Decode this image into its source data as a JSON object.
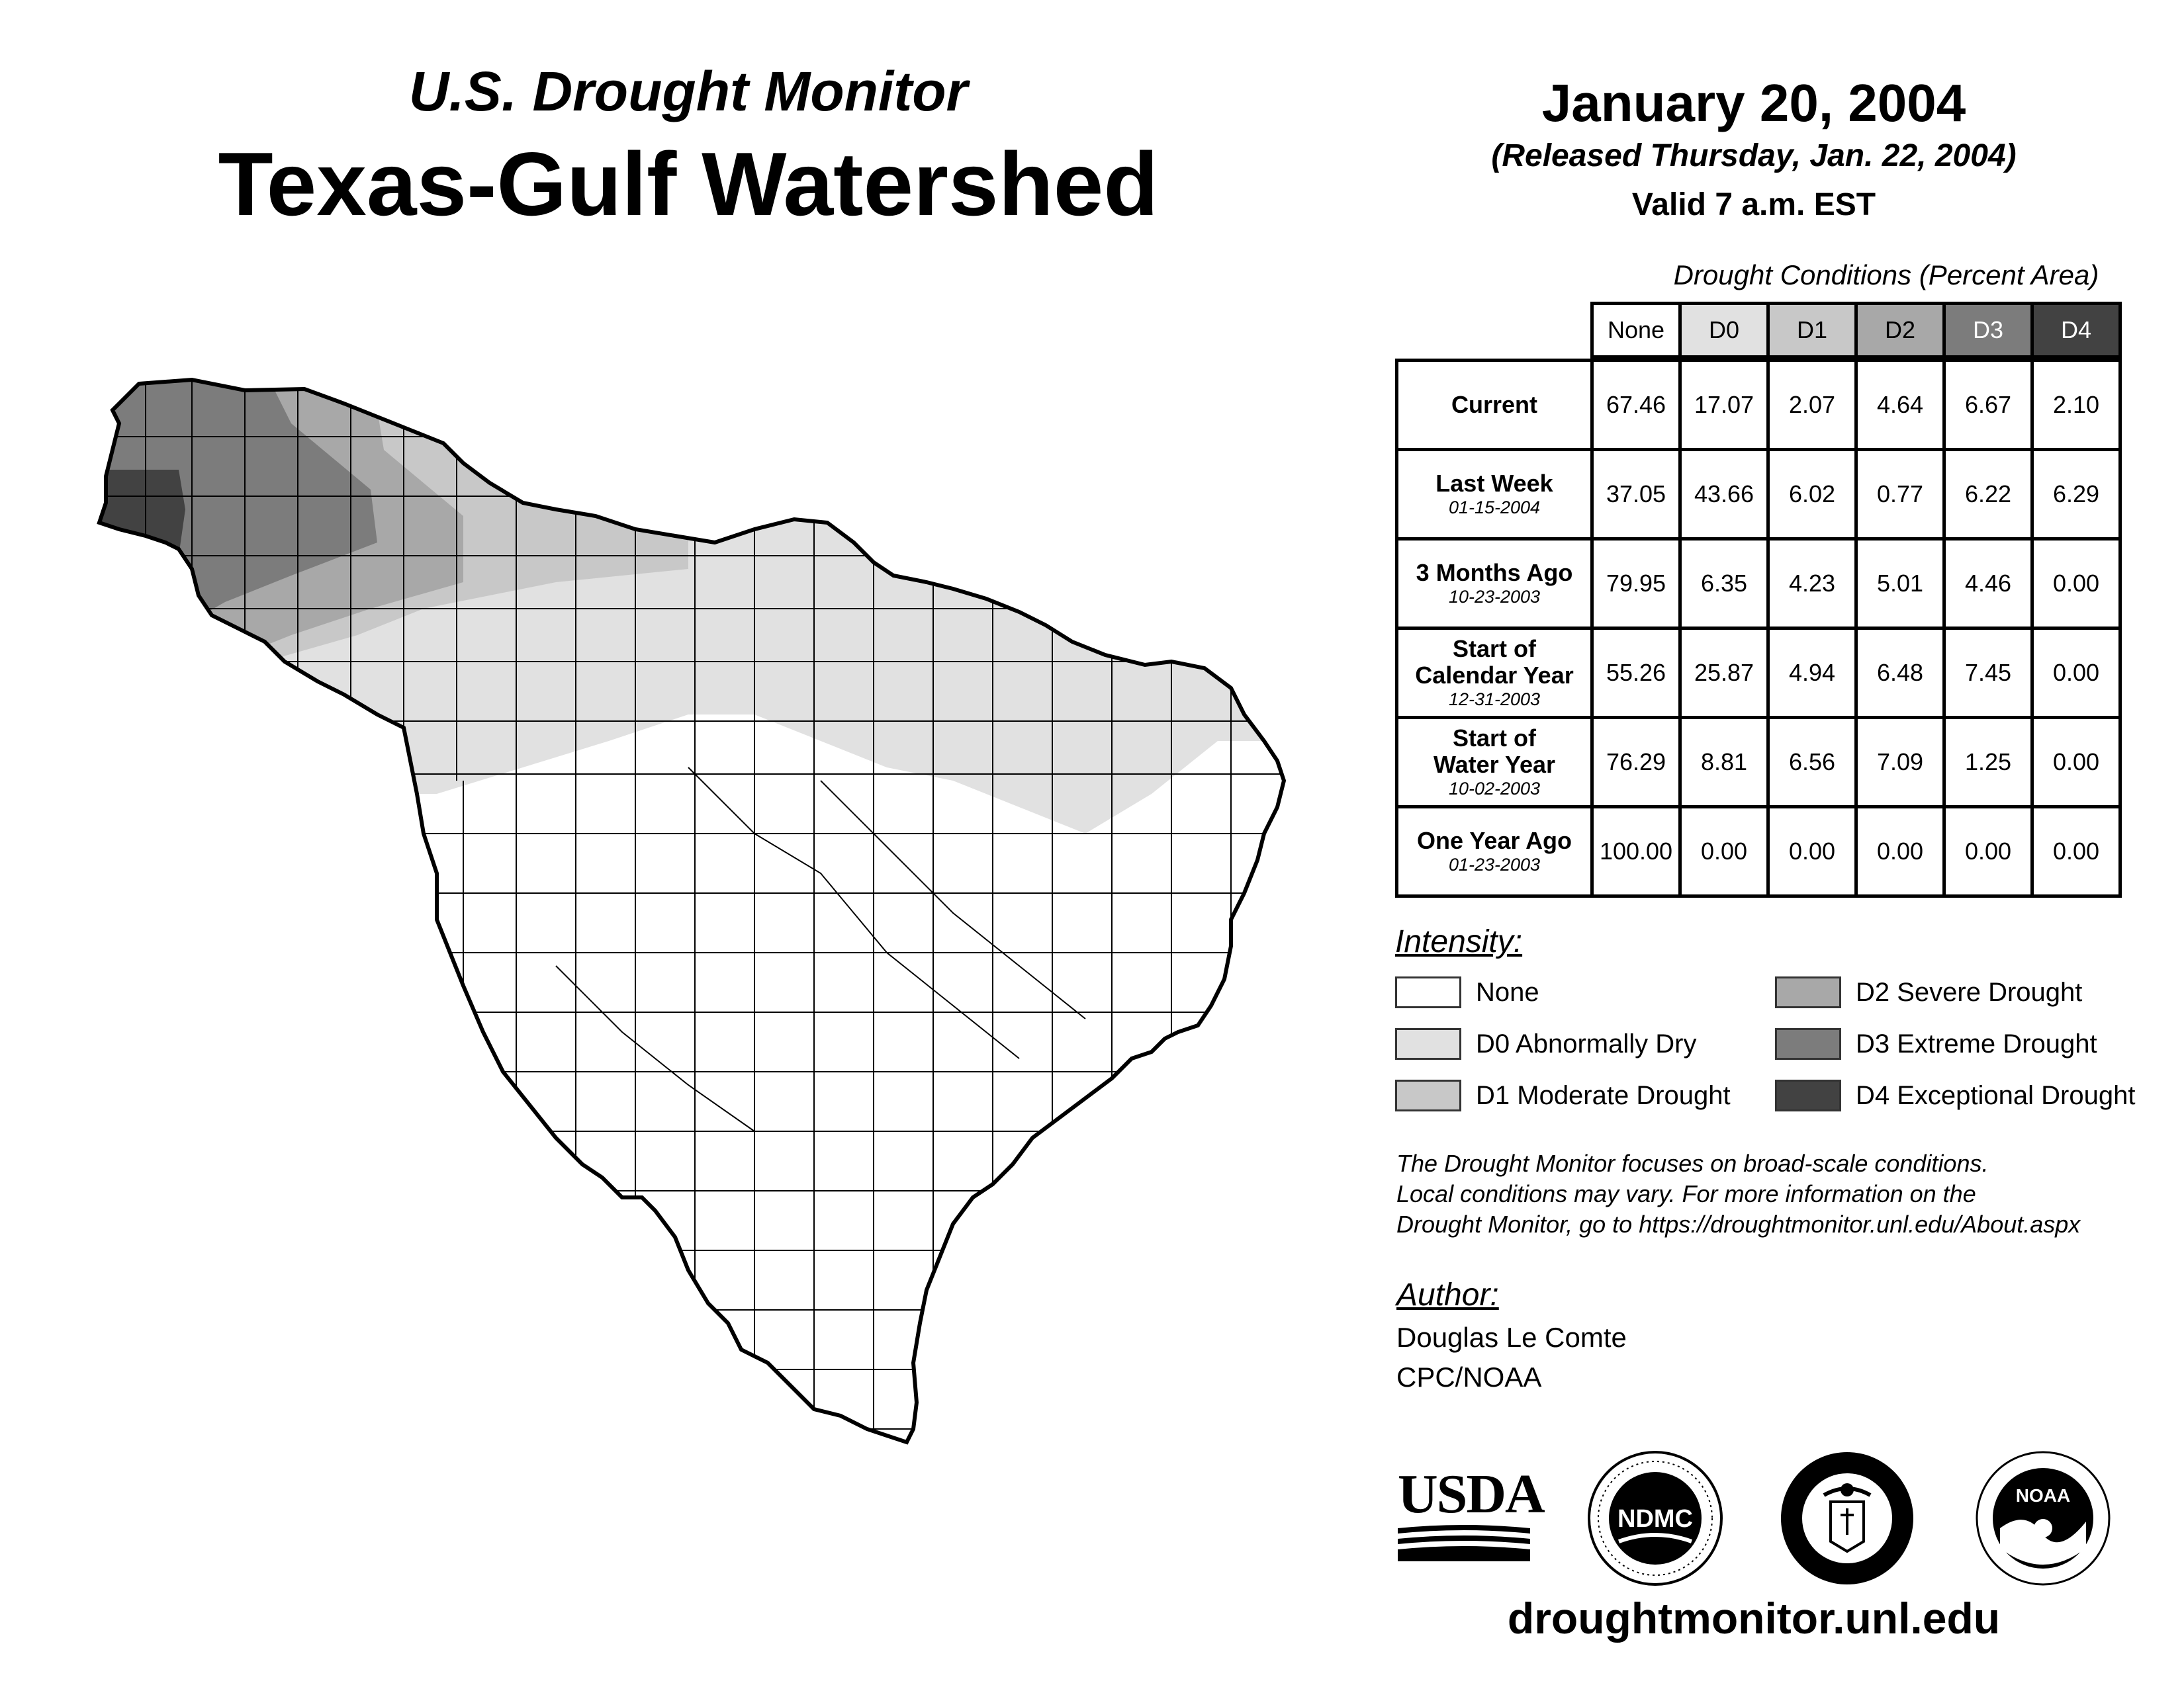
{
  "header": {
    "subtitle": "U.S. Drought Monitor",
    "title": "Texas-Gulf Watershed",
    "date": "January 20, 2004",
    "released": "(Released Thursday, Jan. 22, 2004)",
    "valid": "Valid 7 a.m. EST"
  },
  "table": {
    "caption": "Drought Conditions (Percent Area)",
    "columns": [
      "None",
      "D0",
      "D1",
      "D2",
      "D3",
      "D4"
    ],
    "rows": [
      {
        "label": "Current",
        "date": "",
        "values": [
          "67.46",
          "17.07",
          "2.07",
          "4.64",
          "6.67",
          "2.10"
        ]
      },
      {
        "label": "Last Week",
        "date": "01-15-2004",
        "values": [
          "37.05",
          "43.66",
          "6.02",
          "0.77",
          "6.22",
          "6.29"
        ]
      },
      {
        "label": "3 Months Ago",
        "date": "10-23-2003",
        "values": [
          "79.95",
          "6.35",
          "4.23",
          "5.01",
          "4.46",
          "0.00"
        ]
      },
      {
        "label_line1": "Start of",
        "label_line2": "Calendar Year",
        "date": "12-31-2003",
        "values": [
          "55.26",
          "25.87",
          "4.94",
          "6.48",
          "7.45",
          "0.00"
        ]
      },
      {
        "label_line1": "Start of",
        "label_line2": "Water Year",
        "date": "10-02-2003",
        "values": [
          "76.29",
          "8.81",
          "6.56",
          "7.09",
          "1.25",
          "0.00"
        ]
      },
      {
        "label": "One Year Ago",
        "date": "01-23-2003",
        "values": [
          "100.00",
          "0.00",
          "0.00",
          "0.00",
          "0.00",
          "0.00"
        ]
      }
    ]
  },
  "legend": {
    "heading": "Intensity:",
    "items": [
      {
        "label": "None",
        "color": "#ffffff"
      },
      {
        "label": "D0 Abnormally Dry",
        "color": "#e1e1e1"
      },
      {
        "label": "D1 Moderate Drought",
        "color": "#c8c8c8"
      },
      {
        "label": "D2 Severe Drought",
        "color": "#a8a8a8"
      },
      {
        "label": "D3 Extreme Drought",
        "color": "#7c7c7c"
      },
      {
        "label": "D4 Exceptional Drought",
        "color": "#424242"
      }
    ]
  },
  "note": {
    "line1": "The Drought Monitor focuses on broad-scale conditions.",
    "line2": "Local conditions may vary. For more information on the",
    "line3": "Drought Monitor, go to https://droughtmonitor.unl.edu/About.aspx"
  },
  "author": {
    "heading": "Author:",
    "name": "Douglas Le Comte",
    "org": "CPC/NOAA"
  },
  "logos": {
    "usda": "USDA",
    "ndmc": "NDMC",
    "noaa": "NOAA"
  },
  "website": "droughtmonitor.unl.edu"
}
